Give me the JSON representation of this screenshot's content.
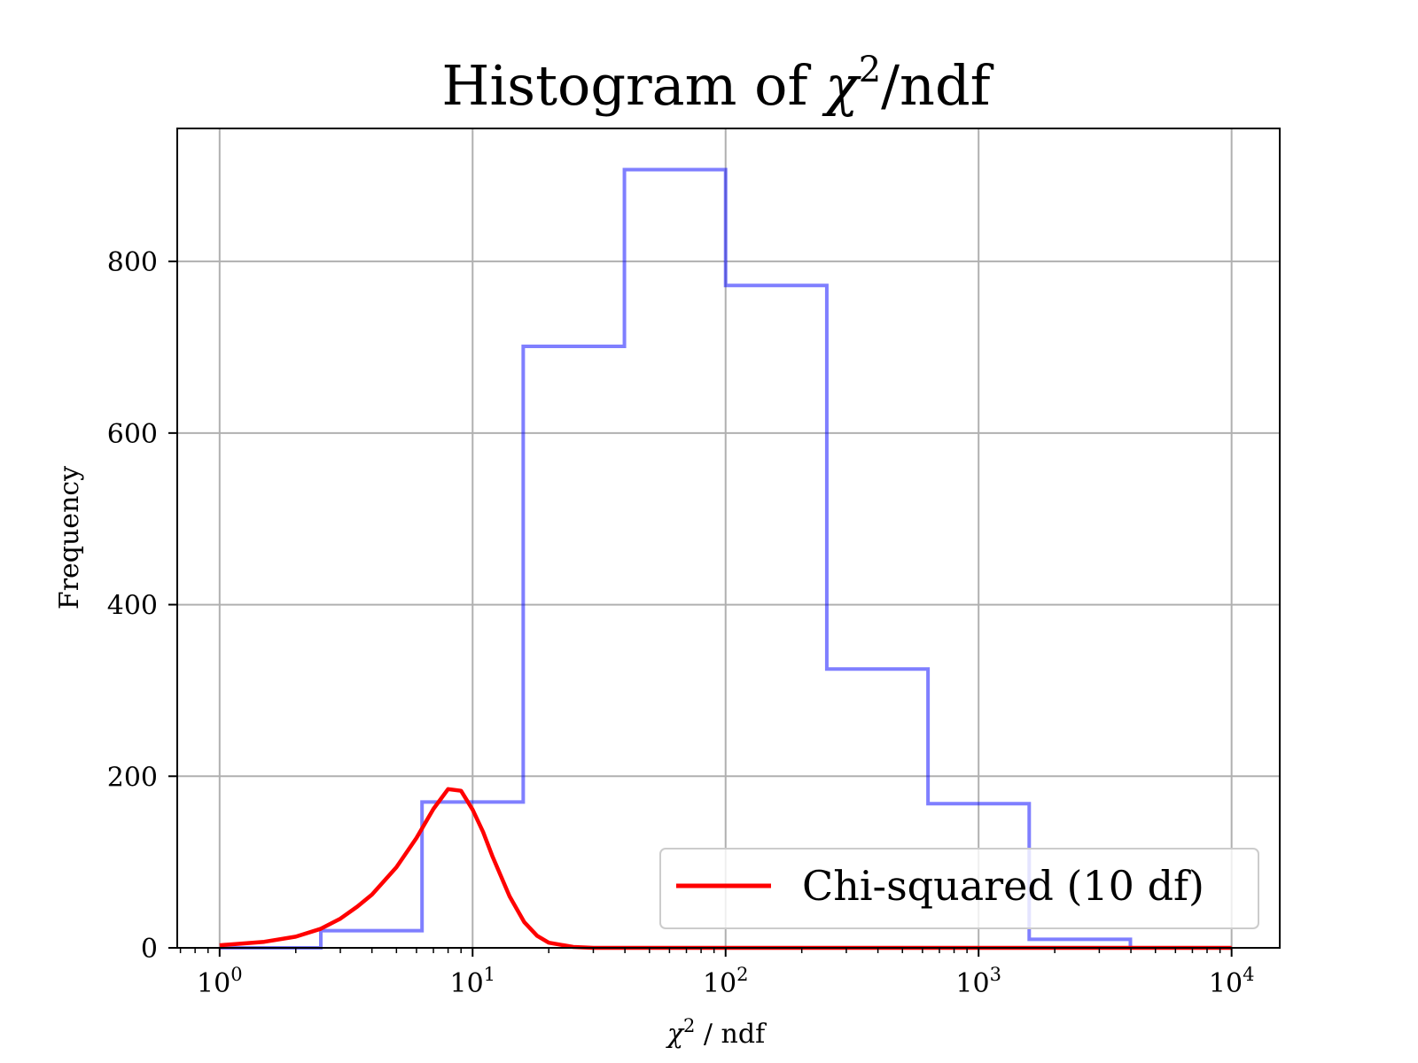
{
  "chart_data": {
    "type": "bar",
    "title": "Histogram of χ²/ndf",
    "xlabel": "χ² / ndf",
    "ylabel": "Frequency",
    "x_scale": "log",
    "xlim": [
      0.68,
      15500
    ],
    "ylim": [
      0,
      955
    ],
    "grid": true,
    "legend_position": "lower-right",
    "x_ticks": [
      {
        "value": 1,
        "base": "10",
        "exp": "0"
      },
      {
        "value": 10,
        "base": "10",
        "exp": "1"
      },
      {
        "value": 100,
        "base": "10",
        "exp": "2"
      },
      {
        "value": 1000,
        "base": "10",
        "exp": "3"
      },
      {
        "value": 10000,
        "base": "10",
        "exp": "4"
      }
    ],
    "y_ticks": [
      0,
      200,
      400,
      600,
      800
    ],
    "histogram": {
      "bin_edges": [
        1.0,
        2.512,
        6.31,
        15.85,
        39.81,
        100.0,
        251.2,
        631.0,
        1585,
        3981,
        10000
      ],
      "counts": [
        0,
        20,
        170,
        701,
        907,
        772,
        325,
        168,
        10,
        0
      ],
      "color": "#0000ff",
      "opacity": 0.5,
      "style": "step"
    },
    "series": [
      {
        "name": "Chi-squared (10 df)",
        "color": "#ff0000",
        "df": 10,
        "peak_x": 8,
        "peak_y": 185,
        "x": [
          1,
          1.5,
          2,
          2.5,
          3,
          3.5,
          4,
          5,
          6,
          7,
          8,
          9,
          10,
          11,
          12,
          14,
          16,
          18,
          20,
          25,
          30,
          40,
          100,
          1000,
          10000
        ],
        "y": [
          3,
          7,
          13,
          22,
          34,
          48,
          62,
          94,
          128,
          162,
          185,
          183,
          161,
          135,
          106,
          60,
          30,
          14,
          6,
          1,
          0,
          0,
          0,
          0,
          0
        ]
      }
    ]
  }
}
